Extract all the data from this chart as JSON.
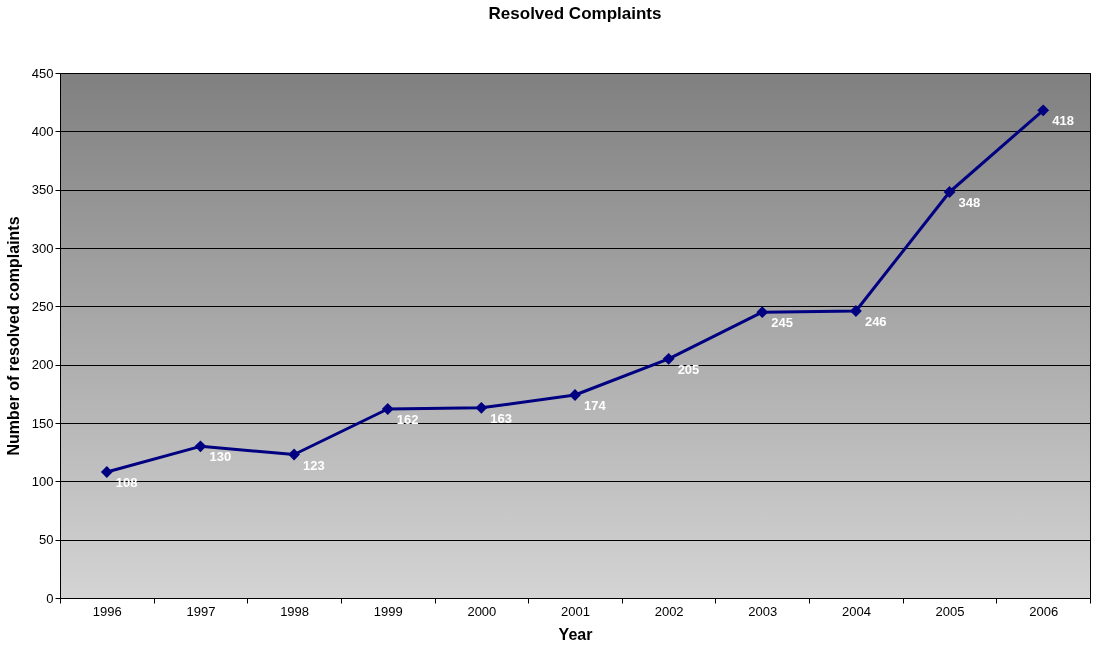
{
  "chart_data": {
    "type": "line",
    "title": "Resolved Complaints",
    "xlabel": "Year",
    "ylabel": "Number of resolved complaints",
    "categories": [
      "1996",
      "1997",
      "1998",
      "1999",
      "2000",
      "2001",
      "2002",
      "2003",
      "2004",
      "2005",
      "2006"
    ],
    "series": [
      {
        "color": "#000080",
        "values": [
          108,
          130,
          123,
          162,
          163,
          174,
          205,
          245,
          246,
          348,
          418
        ]
      }
    ],
    "ylim": [
      0,
      450
    ],
    "yticks": [
      0,
      50,
      100,
      150,
      200,
      250,
      300,
      350,
      400,
      450
    ],
    "grid": "y",
    "marker": "diamond",
    "data_labels": true,
    "legend": false
  }
}
